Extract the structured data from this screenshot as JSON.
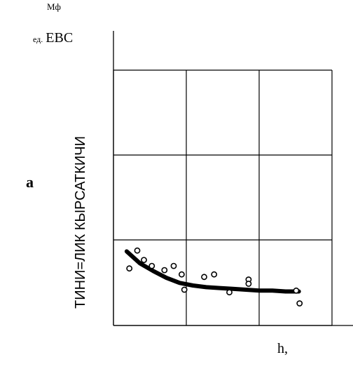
{
  "labels": {
    "unit_top": "Мф",
    "unit_small": "ед.",
    "unit_big": "ЕВС",
    "panel_letter": "а",
    "ylabel": "ТИНИ=ЛИК КЫРСАТКИЧИ",
    "xlabel": "h,"
  },
  "chart_data": {
    "type": "scatter",
    "title": "",
    "xlabel": "h,",
    "ylabel": "ТИНИ=ЛИК КЫРСАТКИЧИ",
    "xlim": [
      0,
      3.3
    ],
    "ylim": [
      0,
      3
    ],
    "grid": true,
    "points": {
      "x": [
        0.24,
        0.36,
        0.46,
        0.58,
        0.77,
        0.91,
        1.03,
        1.07,
        1.37,
        1.52,
        1.75,
        2.04,
        2.04,
        2.76,
        2.81
      ],
      "y": [
        0.67,
        0.88,
        0.77,
        0.7,
        0.65,
        0.7,
        0.6,
        0.42,
        0.57,
        0.6,
        0.39,
        0.54,
        0.49,
        0.41,
        0.26
      ]
    },
    "fit_curve": {
      "x": [
        0.2,
        0.4,
        0.6,
        0.8,
        1.0,
        1.2,
        1.4,
        1.6,
        1.8,
        2.0,
        2.2,
        2.4,
        2.6,
        2.8
      ],
      "y": [
        0.87,
        0.73,
        0.64,
        0.56,
        0.5,
        0.47,
        0.45,
        0.44,
        0.43,
        0.42,
        0.41,
        0.41,
        0.4,
        0.4
      ]
    }
  }
}
